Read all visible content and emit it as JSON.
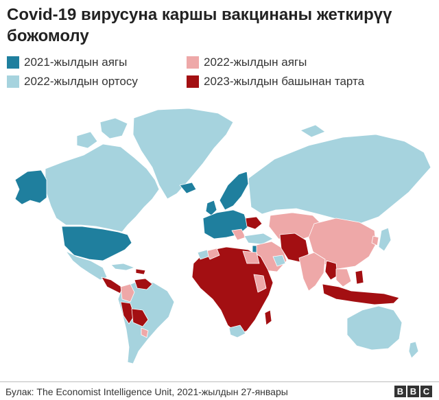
{
  "title": "Covid-19 вирусуна каршы вакцинаны жеткирүү божомолу",
  "legend": [
    {
      "label": "2021-жылдын аягы",
      "color": "#1f7f9e"
    },
    {
      "label": "2022-жылдын ортосу",
      "color": "#a6d3de"
    },
    {
      "label": "2022-жылдын аягы",
      "color": "#eea8a8"
    },
    {
      "label": "2023-жылдын башынан тарта",
      "color": "#a30f12"
    }
  ],
  "colors": {
    "ocean": "#ffffff",
    "border": "#ffffff"
  },
  "source": "Булак: The Economist Intelligence Unit, 2021-жылдын 27-январы",
  "logo": [
    "B",
    "B",
    "C"
  ]
}
